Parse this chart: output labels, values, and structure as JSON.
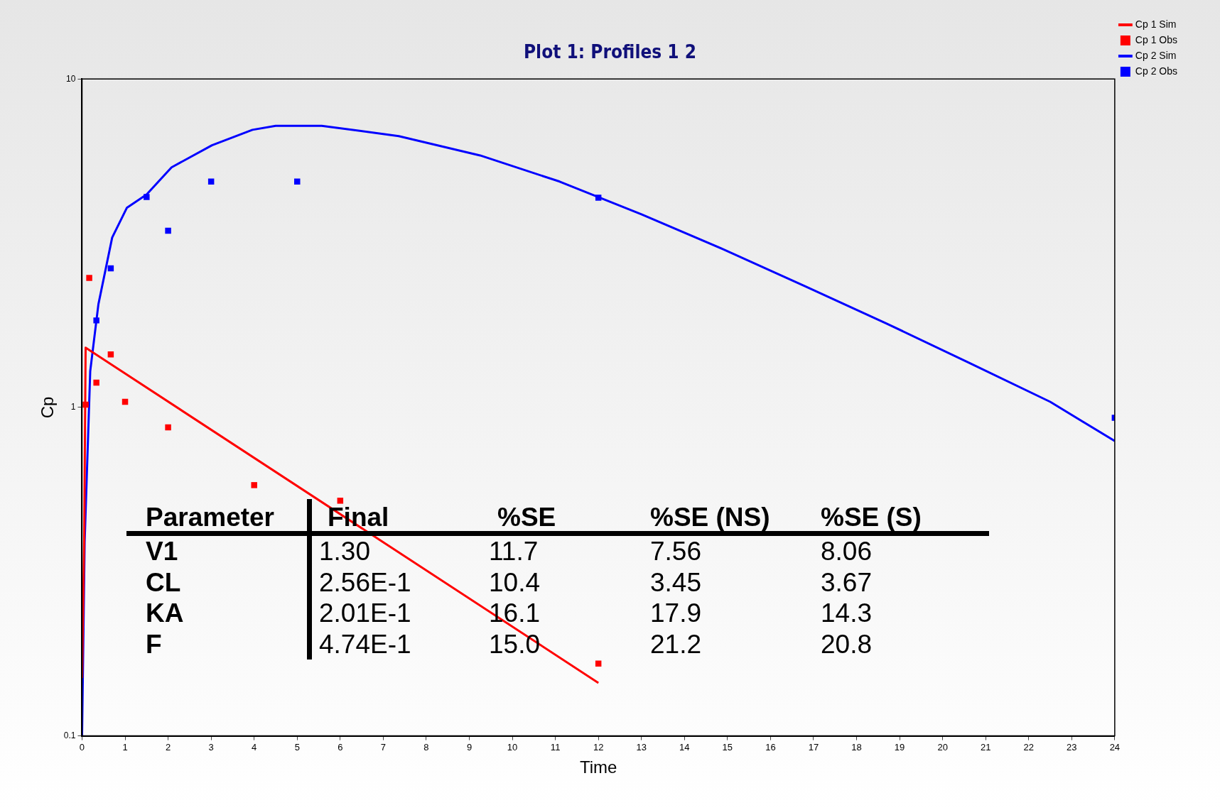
{
  "chart_data": {
    "type": "line",
    "title": "Plot 1: Profiles 1 2",
    "xlabel": "Time",
    "ylabel": "Cp",
    "log": "y",
    "xlim": [
      0,
      24
    ],
    "xticks": [
      0,
      1,
      2,
      3,
      4,
      5,
      6,
      7,
      8,
      9,
      10,
      11,
      12,
      13,
      14,
      15,
      16,
      17,
      18,
      19,
      20,
      21,
      22,
      23,
      24
    ],
    "ylim": [
      0.1,
      10
    ],
    "yticks": [
      0.1,
      1,
      10
    ],
    "grid": false,
    "legend": "top right",
    "series": [
      {
        "name": "Cp 1 Sim",
        "type": "line",
        "marker": "none",
        "color": "#ff0000",
        "x": [
          0,
          0.05,
          0.083,
          12
        ],
        "values": [
          0.15,
          0.4,
          1.52,
          0.145
        ]
      },
      {
        "name": "Cp 1 Obs",
        "type": "scatter",
        "marker": "square",
        "color": "#ff0000",
        "x": [
          0.083,
          0.167,
          0.333,
          0.667,
          1,
          2,
          4,
          6,
          12
        ],
        "values": [
          1.02,
          2.48,
          1.19,
          1.45,
          1.04,
          0.87,
          0.58,
          0.52,
          0.166
        ]
      },
      {
        "name": "Cp 2 Sim",
        "type": "line",
        "marker": "none",
        "color": "#0000ff",
        "x": [
          0,
          0.06,
          0.19,
          0.38,
          0.7,
          1.04,
          1.5,
          2.08,
          3.02,
          3.96,
          4.5,
          5.57,
          7.36,
          9.25,
          11.1,
          13,
          14.9,
          16.8,
          18.7,
          20.6,
          22.5,
          24
        ],
        "values": [
          0.1,
          0.39,
          1.29,
          2.06,
          3.29,
          4.05,
          4.45,
          5.38,
          6.28,
          7.0,
          7.2,
          7.2,
          6.7,
          5.85,
          4.87,
          3.87,
          3.03,
          2.34,
          1.8,
          1.37,
          1.04,
          0.79
        ]
      },
      {
        "name": "Cp 2 Obs",
        "type": "scatter",
        "marker": "square",
        "color": "#0000ff",
        "x": [
          0.333,
          0.667,
          1.5,
          2,
          3,
          5,
          12,
          24
        ],
        "values": [
          1.84,
          2.65,
          4.37,
          3.45,
          4.87,
          4.87,
          4.35,
          0.93
        ]
      }
    ],
    "annotations": [
      "Parameter",
      "Final",
      "%SE",
      "%SE (NS)",
      "%SE (S)",
      "V1",
      "1.30",
      "11.7",
      "7.56",
      "8.06",
      "CL",
      "2.56E-1",
      "10.4",
      "3.45",
      "3.67",
      "KA",
      "2.01E-1",
      "16.1",
      "17.9",
      "14.3",
      "F",
      "4.74E-1",
      "15.0",
      "21.2",
      "20.8"
    ]
  }
}
